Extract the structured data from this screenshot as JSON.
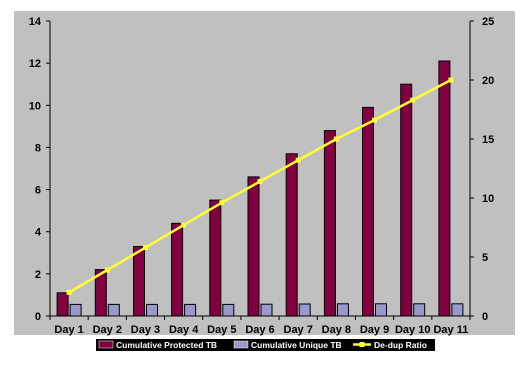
{
  "chart_data": {
    "type": "bar",
    "categories": [
      "Day 1",
      "Day 2",
      "Day 3",
      "Day 4",
      "Day 5",
      "Day 6",
      "Day 7",
      "Day 8",
      "Day 9",
      "Day 10",
      "Day 11"
    ],
    "series": [
      {
        "name": "Cumulative Protected TB",
        "type": "bar",
        "axis": "left",
        "values": [
          1.1,
          2.2,
          3.3,
          4.4,
          5.5,
          6.6,
          7.7,
          8.8,
          9.9,
          11.0,
          12.1
        ]
      },
      {
        "name": "Cumulative Unique TB",
        "type": "bar",
        "axis": "left",
        "values": [
          0.55,
          0.55,
          0.55,
          0.55,
          0.55,
          0.56,
          0.57,
          0.58,
          0.58,
          0.58,
          0.58
        ]
      },
      {
        "name": "De-dup Ratio",
        "type": "line",
        "axis": "right",
        "values": [
          2.0,
          3.9,
          5.8,
          7.7,
          9.6,
          11.4,
          13.2,
          15.0,
          16.6,
          18.3,
          20.0
        ]
      }
    ],
    "y_left": {
      "min": 0,
      "max": 14,
      "ticks": [
        0,
        2,
        4,
        6,
        8,
        10,
        12,
        14
      ]
    },
    "y_right": {
      "min": 0,
      "max": 25,
      "ticks": [
        0,
        5,
        10,
        15,
        20,
        25
      ]
    },
    "legend": {
      "placement": "bottom"
    },
    "grid": false,
    "colors": {
      "plot_bg": "#c0c0c0",
      "protected": "#800040",
      "unique": "#9999cc",
      "ratio": "#ffff33",
      "axis": "#000000"
    }
  }
}
